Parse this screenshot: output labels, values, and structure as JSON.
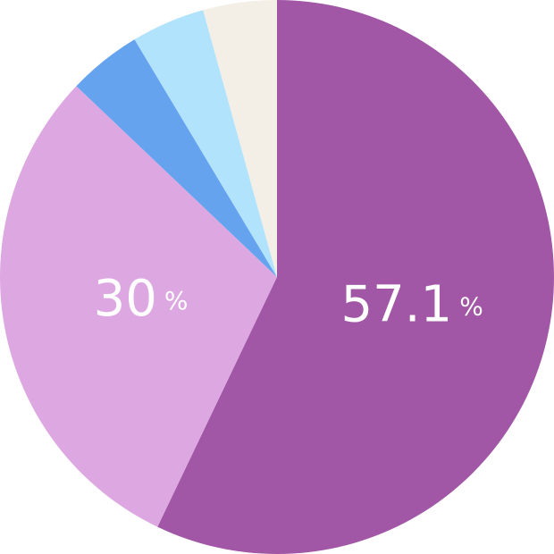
{
  "chart_data": {
    "type": "pie",
    "values": [
      57.1,
      30,
      4.3,
      4.3,
      4.3
    ],
    "value_labels": [
      "57.1 %",
      "30 %",
      null,
      null,
      null
    ],
    "colors": [
      "#a157a6",
      "#dda8e1",
      "#66a3ef",
      "#b2e3fd",
      "#f4efe6"
    ]
  }
}
